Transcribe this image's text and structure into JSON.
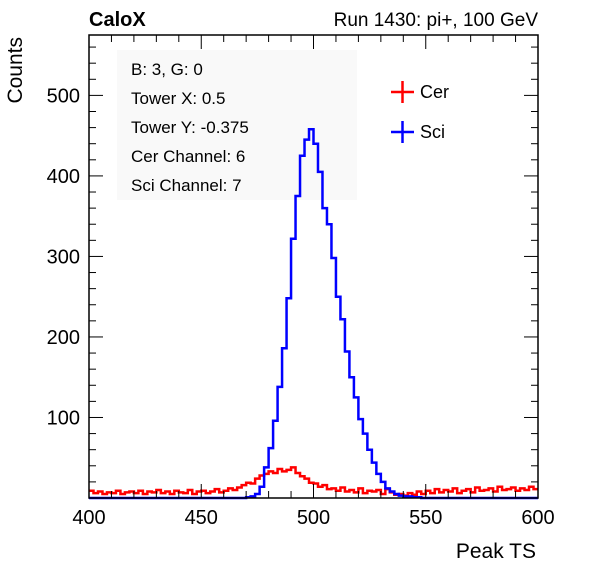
{
  "header": {
    "experiment": "CaloX",
    "run_info": "Run 1430: pi+, 100 GeV"
  },
  "info_box": {
    "lines": [
      "B: 3, G: 0",
      "Tower X: 0.5",
      "Tower Y: -0.375",
      "Cer Channel: 6",
      "Sci Channel: 7"
    ]
  },
  "chart_data": {
    "type": "line",
    "style": "step histogram",
    "xlabel": "Peak TS",
    "ylabel": "Counts",
    "xlim": [
      400,
      600
    ],
    "ylim": [
      0,
      575
    ],
    "x_ticks": [
      400,
      450,
      500,
      550,
      600
    ],
    "y_ticks": [
      100,
      200,
      300,
      400,
      500
    ],
    "grid": false,
    "legend_position": "top-right",
    "bin_width": 2,
    "x": [
      401,
      403,
      405,
      407,
      409,
      411,
      413,
      415,
      417,
      419,
      421,
      423,
      425,
      427,
      429,
      431,
      433,
      435,
      437,
      439,
      441,
      443,
      445,
      447,
      449,
      451,
      453,
      455,
      457,
      459,
      461,
      463,
      465,
      467,
      469,
      471,
      473,
      475,
      477,
      479,
      481,
      483,
      485,
      487,
      489,
      491,
      493,
      495,
      497,
      499,
      501,
      503,
      505,
      507,
      509,
      511,
      513,
      515,
      517,
      519,
      521,
      523,
      525,
      527,
      529,
      531,
      533,
      535,
      537,
      539,
      541,
      543,
      545,
      547,
      549,
      551,
      553,
      555,
      557,
      559,
      561,
      563,
      565,
      567,
      569,
      571,
      573,
      575,
      577,
      579,
      581,
      583,
      585,
      587,
      589,
      591,
      593,
      595,
      597,
      599
    ],
    "series": [
      {
        "name": "Cer",
        "color": "#ff0000",
        "values": [
          9,
          6,
          8,
          5,
          7,
          6,
          9,
          5,
          7,
          8,
          6,
          9,
          5,
          8,
          7,
          10,
          6,
          8,
          5,
          9,
          7,
          6,
          10,
          5,
          8,
          9,
          6,
          8,
          11,
          7,
          9,
          12,
          10,
          13,
          16,
          19,
          18,
          24,
          28,
          30,
          33,
          31,
          36,
          33,
          35,
          38,
          31,
          27,
          24,
          19,
          18,
          14,
          16,
          11,
          12,
          9,
          13,
          8,
          10,
          7,
          12,
          6,
          9,
          8,
          10,
          5,
          11,
          7,
          4,
          5,
          3,
          6,
          4,
          8,
          5,
          9,
          6,
          11,
          7,
          10,
          8,
          12,
          6,
          9,
          11,
          7,
          13,
          9,
          10,
          12,
          8,
          14,
          10,
          11,
          13,
          9,
          12,
          10,
          14,
          11
        ]
      },
      {
        "name": "Sci",
        "color": "#0000ff",
        "values": [
          0,
          0,
          0,
          0,
          0,
          0,
          0,
          0,
          0,
          0,
          0,
          0,
          0,
          0,
          0,
          0,
          0,
          0,
          0,
          0,
          0,
          0,
          0,
          0,
          0,
          0,
          0,
          0,
          0,
          0,
          0,
          0,
          0,
          0,
          0,
          1,
          2,
          5,
          14,
          38,
          62,
          96,
          138,
          186,
          248,
          322,
          375,
          425,
          445,
          458,
          440,
          405,
          360,
          340,
          298,
          250,
          222,
          182,
          150,
          125,
          98,
          80,
          60,
          44,
          30,
          20,
          12,
          8,
          5,
          3,
          2,
          2,
          1,
          1,
          0,
          0,
          0,
          0,
          0,
          0,
          0,
          0,
          0,
          0,
          0,
          0,
          0,
          0,
          0,
          0,
          0,
          0,
          0,
          0,
          0,
          0,
          0,
          0,
          0,
          0
        ]
      }
    ]
  },
  "colors": {
    "cer": "#ff0000",
    "sci": "#0000ff",
    "axes": "#000000"
  }
}
